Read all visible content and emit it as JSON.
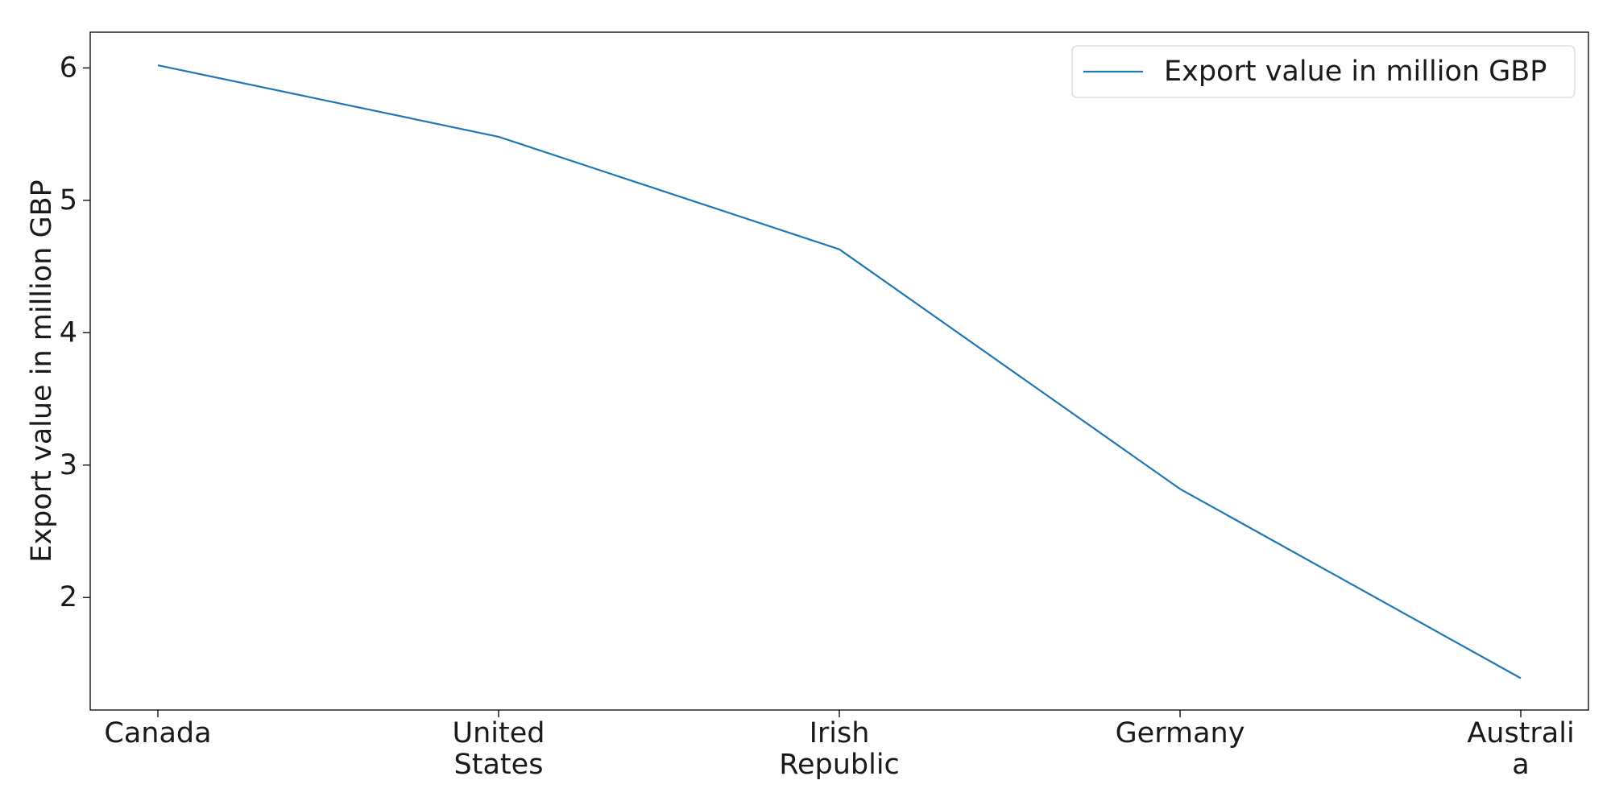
{
  "chart_data": {
    "type": "line",
    "categories": [
      [
        "Canada"
      ],
      [
        "United",
        "States"
      ],
      [
        "Irish",
        "Republic"
      ],
      [
        "Germany"
      ],
      [
        "Australi",
        "a"
      ]
    ],
    "series": [
      {
        "name": "Export value in million GBP",
        "values": [
          6.02,
          5.48,
          4.63,
          2.82,
          1.39
        ],
        "color": "#1f77b4"
      }
    ],
    "ylabel": "Export value in million GBP",
    "xlabel": "",
    "title": "",
    "ylim": [
      1.15,
      6.27
    ],
    "yticks": [
      2,
      3,
      4,
      5,
      6
    ],
    "grid": false,
    "legend_position": "top-right"
  }
}
